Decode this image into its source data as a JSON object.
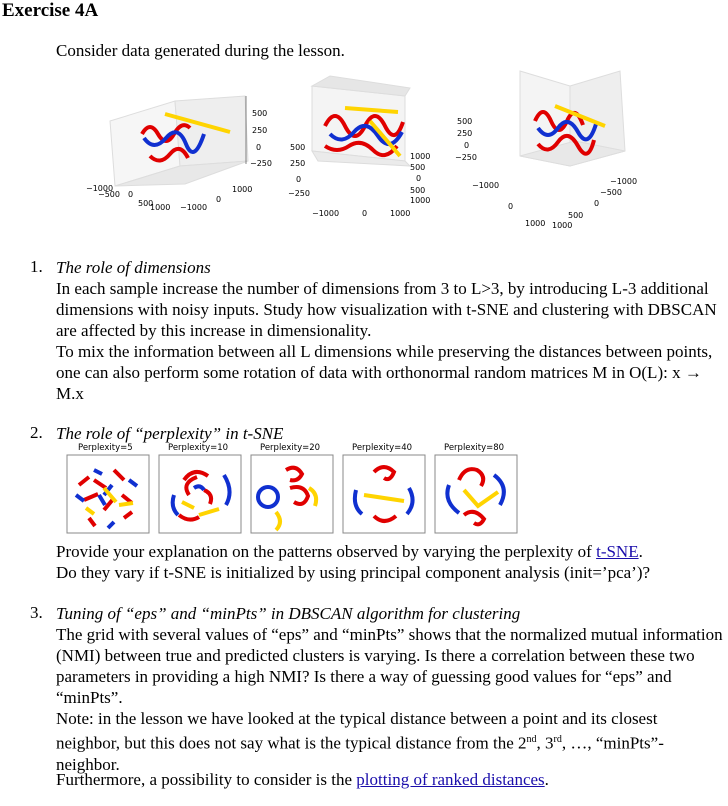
{
  "doc": {
    "title": "Exercise 4A",
    "intro": "Consider data generated during the lesson.",
    "plots3d": [
      {
        "z_ticks": [
          "500",
          "250",
          "0",
          "−250"
        ],
        "x_ticks": [
          "−1000",
          "−500",
          "0",
          "500",
          "1000"
        ],
        "y_ticks": [
          "−1000",
          "0",
          "1000"
        ]
      },
      {
        "z_ticks": [
          "500",
          "250",
          "0",
          "−250"
        ],
        "x_ticks": [
          "−1000",
          "0",
          "1000"
        ],
        "y_ticks": [
          "1000",
          "500",
          "0",
          "500",
          "1000"
        ]
      },
      {
        "z_ticks": [
          "500",
          "250",
          "0",
          "−250"
        ],
        "x_ticks": [
          "−1000",
          "0",
          "1000"
        ],
        "y_ticks": [
          "−1000",
          "−500",
          "0",
          "500",
          "1000"
        ]
      }
    ],
    "sections": [
      {
        "number": "1.",
        "heading": "The role of dimensions",
        "p1": "In each sample increase the number of dimensions from 3 to L>3, by introducing L-3 additional dimensions with noisy inputs. Study how visualization with t-SNE and clustering with DBSCAN are affected by this increase in dimensionality.",
        "p2": "To mix the information between all L dimensions while preserving the distances between points, one can also perform some rotation of data with orthonormal random matrices M in O(L):  x → M.x"
      },
      {
        "number": "2.",
        "heading": "The role of “perplexity” in t-SNE",
        "perplexity_titles": [
          "Perplexity=5",
          "Perplexity=10",
          "Perplexity=20",
          "Perplexity=40",
          "Perplexity=80"
        ],
        "p1_before": "Provide your explanation on the patterns observed by varying the perplexity of ",
        "p1_link": "t-SNE",
        "p1_after": ".",
        "p2": "Do they vary if t-SNE is initialized by using principal component analysis (init=’pca’)?"
      },
      {
        "number": "3.",
        "heading": "Tuning of “eps” and “minPts” in DBSCAN algorithm for clustering",
        "p1": "The grid with several values of “eps” and “minPts” shows that the normalized mutual information (NMI) between true and predicted clusters is varying. Is there a correlation between these two parameters in providing a high NMI? Is there a way of guessing good values for “eps” and “minPts”.",
        "note_a": "Note: in the lesson we have looked at the typical distance between a point and its closest neighbor, but this does not say what is the typical distance from the 2",
        "sup1": "nd",
        "note_b": ", 3",
        "sup2": "rd",
        "note_c": ", …, “minPts”-neighbor.",
        "p3_before": "Furthermore, a possibility to consider is the ",
        "p3_link": "plotting of ranked distances",
        "p3_after": "."
      }
    ]
  }
}
